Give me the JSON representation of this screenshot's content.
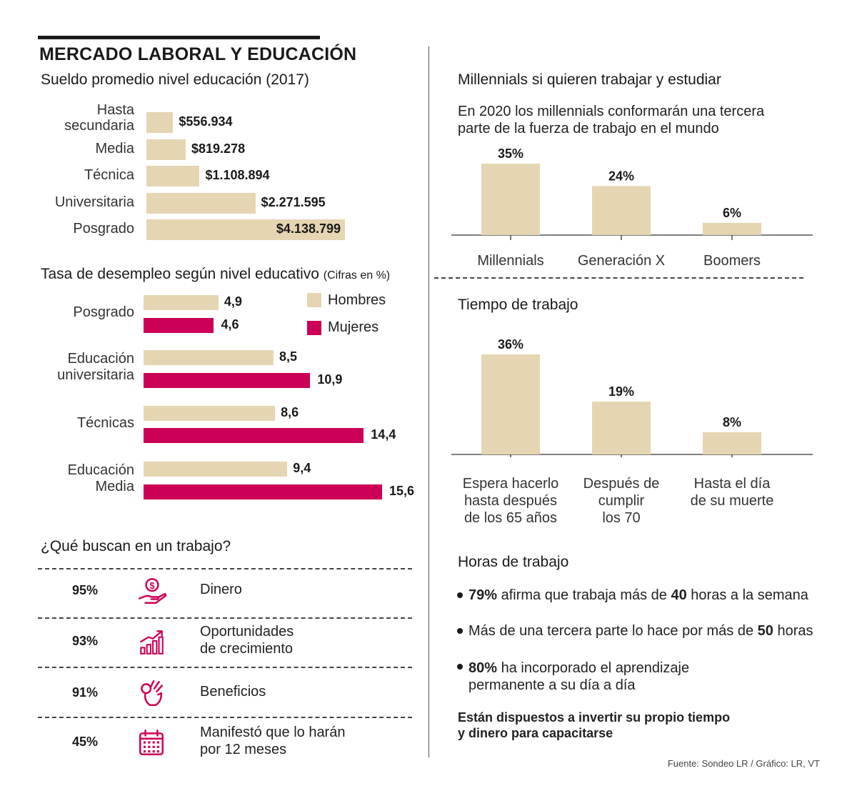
{
  "header": {
    "title": "MERCADO LABORAL Y EDUCACIÓN"
  },
  "colors": {
    "bar": "#e6d5b2",
    "women": "#cc0056",
    "icon": "#cc0056",
    "text": "#1a1a1a"
  },
  "chart_data": [
    {
      "type": "bar",
      "orientation": "horizontal",
      "title": "Sueldo promedio nivel educación (2017)",
      "categories": [
        "Hasta secundaria",
        "Media",
        "Técnica",
        "Universitaria",
        "Posgrado"
      ],
      "values": [
        556934,
        819278,
        1108894,
        2271595,
        4138799
      ],
      "value_labels": [
        "$556.934",
        "$819.278",
        "$1.108.894",
        "$2.271.595",
        "$4.138.799"
      ]
    },
    {
      "type": "bar",
      "orientation": "horizontal",
      "title": "Tasa de desempleo según nivel educativo",
      "subtitle": "(Cifras en %)",
      "categories": [
        "Posgrado",
        "Educación universitaria",
        "Técnicas",
        "Educación Media"
      ],
      "series": [
        {
          "name": "Hombres",
          "values": [
            4.9,
            8.5,
            8.6,
            9.4
          ],
          "labels": [
            "4,9",
            "8,5",
            "8,6",
            "9,4"
          ]
        },
        {
          "name": "Mujeres",
          "values": [
            4.6,
            10.9,
            14.4,
            15.6
          ],
          "labels": [
            "4,6",
            "10,9",
            "14,4",
            "15,6"
          ]
        }
      ],
      "legend": "top-right"
    },
    {
      "type": "bar",
      "title": "Millennials si quieren trabajar y estudiar",
      "subtitle": "En 2020 los millennials conformarán una tercera parte de la fuerza de trabajo en el mundo",
      "categories": [
        "Millennials",
        "Generación X",
        "Boomers"
      ],
      "values": [
        35,
        24,
        6
      ],
      "value_labels": [
        "35%",
        "24%",
        "6%"
      ]
    },
    {
      "type": "bar",
      "title": "Tiempo de trabajo",
      "categories": [
        "Espera hacerlo hasta después de los 65 años",
        "Después de cumplir los 70",
        "Hasta el día de su muerte"
      ],
      "values": [
        36,
        19,
        8
      ],
      "value_labels": [
        "36%",
        "19%",
        "8%"
      ]
    }
  ],
  "salary": {
    "labels_l1": [
      "Hasta",
      "",
      "",
      "",
      ""
    ],
    "labels_l2": [
      "secundaria",
      "Media",
      "Técnica",
      "Universitaria",
      "Posgrado"
    ]
  },
  "unemployment": {
    "title": "Tasa de desempleo según nivel educativo",
    "subtitle": "(Cifras en %)",
    "labels_l1": [
      "",
      "Educación",
      "",
      "Educación"
    ],
    "labels_l2": [
      "Posgrado",
      "universitaria",
      "Técnicas",
      "Media"
    ]
  },
  "millennials": {
    "labels": [
      "Millennials",
      "Generación X",
      "Boomers"
    ]
  },
  "tiempo": {
    "labels_l1": [
      "Espera hacerlo",
      "Después de",
      "Hasta el día"
    ],
    "labels_l2": [
      "hasta después",
      "cumplir",
      "de su muerte"
    ],
    "labels_l3": [
      "de los 65 años",
      "los 70",
      ""
    ]
  },
  "busca": {
    "title": "¿Qué buscan en un trabajo?",
    "rows": [
      {
        "pct": "95%",
        "icon": "money-hand-icon",
        "l1": "Dinero",
        "l2": ""
      },
      {
        "pct": "93%",
        "icon": "growth-chart-icon",
        "l1": "Oportunidades",
        "l2": "de crecimiento"
      },
      {
        "pct": "91%",
        "icon": "ok-hand-icon",
        "l1": "Beneficios",
        "l2": ""
      },
      {
        "pct": "45%",
        "icon": "calendar-icon",
        "l1": "Manifestó que lo harán",
        "l2": "por 12 meses"
      }
    ]
  },
  "horas": {
    "title": "Horas de trabajo",
    "b1": {
      "s1": "79%",
      "s2": " afirma que trabaja más de ",
      "s3": "40",
      "s4": " horas a la semana"
    },
    "b2": {
      "s1": "Más de una tercera parte lo hace por más de ",
      "s2": "50",
      "s3": " horas"
    },
    "b3": {
      "s1": "80%",
      "s2": " ha incorporado el aprendizaje",
      "s3": "permanente a su día a día"
    },
    "conclusion_l1": "Están dispuestos a invertir su propio tiempo",
    "conclusion_l2": "y dinero para capacitarse"
  },
  "source": "Fuente: Sondeo LR / Gráfico: LR, VT"
}
